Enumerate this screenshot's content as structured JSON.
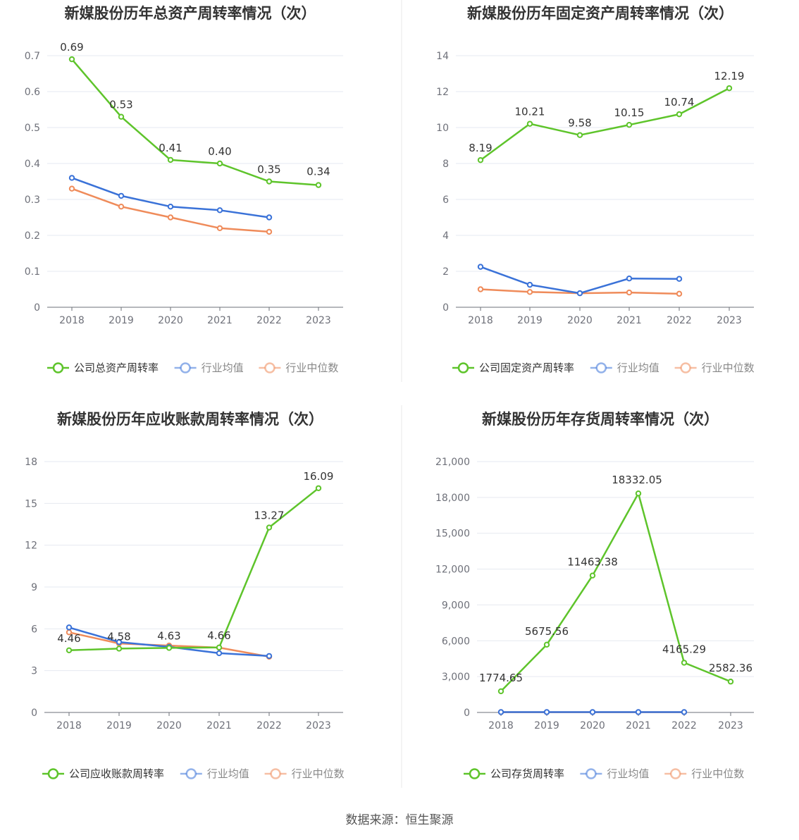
{
  "colors": {
    "company": "#5ec42b",
    "average": "#3a72d8",
    "median": "#ef8b5a",
    "grid": "#e6e9f0",
    "axis": "#6e7079",
    "title": "#333333",
    "divider": "#e9e9e9"
  },
  "footer": "数据来源：恒生聚源",
  "chart_data": [
    {
      "type": "line",
      "title": "新媒股份历年总资产周转率情况（次）",
      "categories": [
        "2018",
        "2019",
        "2020",
        "2021",
        "2022",
        "2023"
      ],
      "yticks": [
        "0",
        "0.1",
        "0.2",
        "0.3",
        "0.4",
        "0.5",
        "0.6",
        "0.7"
      ],
      "ylim": [
        0,
        0.7
      ],
      "series": [
        {
          "name": "公司总资产周转率",
          "values": [
            0.69,
            0.53,
            0.41,
            0.4,
            0.35,
            0.34
          ],
          "labels": [
            "0.69",
            "0.53",
            "0.41",
            "0.40",
            "0.35",
            "0.34"
          ]
        },
        {
          "name": "行业均值",
          "values": [
            0.36,
            0.31,
            0.28,
            0.27,
            0.25,
            null
          ]
        },
        {
          "name": "行业中位数",
          "values": [
            0.33,
            0.28,
            0.25,
            0.22,
            0.21,
            null
          ]
        }
      ],
      "legend": "bottom"
    },
    {
      "type": "line",
      "title": "新媒股份历年固定资产周转率情况（次）",
      "categories": [
        "2018",
        "2019",
        "2020",
        "2021",
        "2022",
        "2023"
      ],
      "yticks": [
        "0",
        "2",
        "4",
        "6",
        "8",
        "10",
        "12",
        "14"
      ],
      "ylim": [
        0,
        14
      ],
      "series": [
        {
          "name": "公司固定资产周转率",
          "values": [
            8.19,
            10.21,
            9.58,
            10.15,
            10.74,
            12.19
          ],
          "labels": [
            "8.19",
            "10.21",
            "9.58",
            "10.15",
            "10.74",
            "12.19"
          ]
        },
        {
          "name": "行业均值",
          "values": [
            2.25,
            1.25,
            0.78,
            1.6,
            1.58,
            null
          ]
        },
        {
          "name": "行业中位数",
          "values": [
            1.0,
            0.85,
            0.78,
            0.82,
            0.75,
            null
          ]
        }
      ],
      "legend": "bottom"
    },
    {
      "type": "line",
      "title": "新媒股份历年应收账款周转率情况（次）",
      "categories": [
        "2018",
        "2019",
        "2020",
        "2021",
        "2022",
        "2023"
      ],
      "yticks": [
        "0",
        "3",
        "6",
        "9",
        "12",
        "15",
        "18"
      ],
      "ylim": [
        0,
        18
      ],
      "series": [
        {
          "name": "公司应收账款周转率",
          "values": [
            4.46,
            4.58,
            4.63,
            4.66,
            13.27,
            16.09
          ],
          "labels": [
            "4.46",
            "4.58",
            "4.63",
            "4.66",
            "13.27",
            "16.09"
          ]
        },
        {
          "name": "行业均值",
          "values": [
            6.1,
            5.05,
            4.7,
            4.25,
            4.05,
            null
          ]
        },
        {
          "name": "行业中位数",
          "values": [
            5.75,
            4.95,
            4.8,
            4.65,
            4.0,
            null
          ]
        }
      ],
      "legend": "bottom"
    },
    {
      "type": "line",
      "title": "新媒股份历年存货周转率情况（次）",
      "categories": [
        "2018",
        "2019",
        "2020",
        "2021",
        "2022",
        "2023"
      ],
      "yticks": [
        "0",
        "3,000",
        "6,000",
        "9,000",
        "12,000",
        "15,000",
        "18,000",
        "21,000"
      ],
      "ylim": [
        0,
        21000
      ],
      "series": [
        {
          "name": "公司存货周转率",
          "values": [
            1774.65,
            5675.56,
            11463.38,
            18332.05,
            4165.29,
            2582.36
          ],
          "labels": [
            "1774.65",
            "5675.56",
            "11463.38",
            "18332.05",
            "4165.29",
            "2582.36"
          ]
        },
        {
          "name": "行业均值",
          "values": [
            30,
            30,
            30,
            30,
            30,
            null
          ]
        },
        {
          "name": "行业中位数",
          "values": [
            25,
            25,
            25,
            25,
            25,
            null
          ]
        }
      ],
      "legend": "bottom"
    }
  ]
}
